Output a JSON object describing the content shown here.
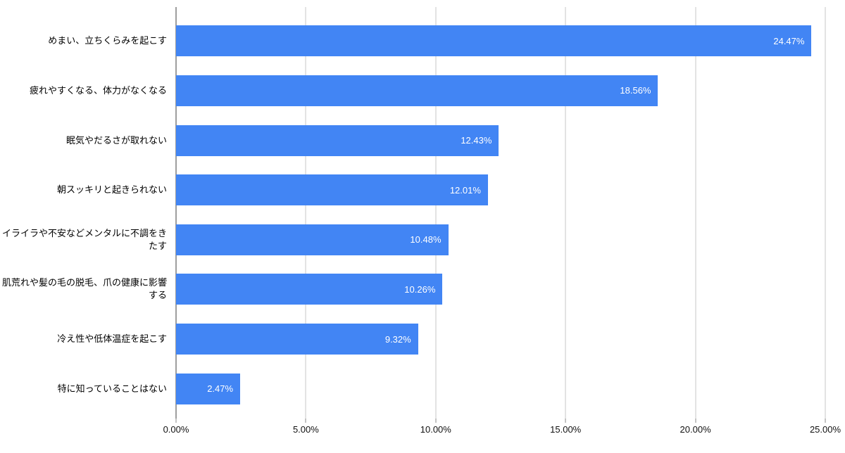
{
  "chart_data": {
    "type": "bar",
    "orientation": "horizontal",
    "title": "",
    "xlabel": "",
    "ylabel": "",
    "xlim": [
      0,
      25
    ],
    "grid": "vertical",
    "legend": "none",
    "categories": [
      "めまい、立ちくらみを起こす",
      "疲れやすくなる、体力がなくなる",
      "眠気やだるさが取れない",
      "朝スッキリと起きられない",
      "イライラや不安などメンタルに不調をきたす",
      "肌荒れや髪の毛の脱毛、爪の健康に影響する",
      "冷え性や低体温症を起こす",
      "特に知っていることはない"
    ],
    "values": [
      24.47,
      18.56,
      12.43,
      12.01,
      10.48,
      10.26,
      9.32,
      2.47
    ],
    "value_labels": [
      "24.47%",
      "18.56%",
      "12.43%",
      "12.01%",
      "10.48%",
      "10.26%",
      "9.32%",
      "2.47%"
    ],
    "x_ticks": [
      "0.00%",
      "5.00%",
      "10.00%",
      "15.00%",
      "20.00%",
      "25.00%"
    ],
    "x_tick_values": [
      0,
      5,
      10,
      15,
      20,
      25
    ],
    "colors": {
      "bar": "#4285f4",
      "value_label": "#ffffff",
      "gridline": "#e3e3e3",
      "axis_line": "#9e9e9e",
      "tick": "#c4c4c4",
      "category_label": "#000000",
      "x_tick_label": "#111111",
      "background": "#ffffff"
    }
  }
}
